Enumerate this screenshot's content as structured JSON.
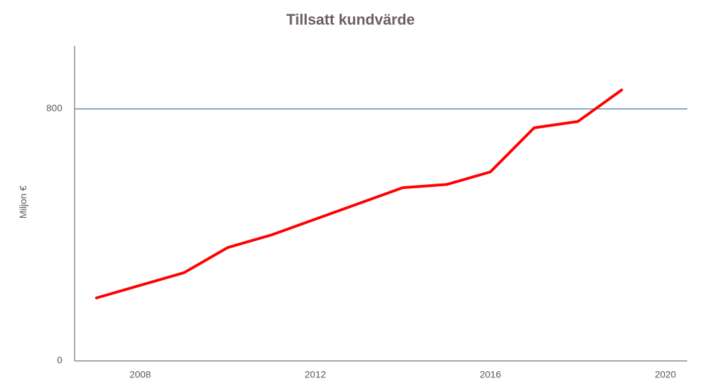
{
  "chart_data": {
    "type": "line",
    "title": "Tillsatt kundvärde",
    "y_label": "Miljon €",
    "x": [
      2007,
      2008,
      2009,
      2010,
      2011,
      2012,
      2013,
      2014,
      2015,
      2016,
      2017,
      2018,
      2019
    ],
    "series": [
      {
        "name": "Tillsatt kundvärde",
        "color": "#ff0000",
        "values": [
          200,
          240,
          280,
          360,
          400,
          450,
          500,
          550,
          560,
          600,
          740,
          760,
          860
        ]
      }
    ],
    "xlim": [
      2006.5,
      2020.5
    ],
    "xticks": [
      2008,
      2012,
      2016,
      2020
    ],
    "ylim": [
      0,
      1000
    ],
    "yticks": [
      0,
      800
    ],
    "grid": true,
    "grid_color": "#7fa9d0"
  }
}
